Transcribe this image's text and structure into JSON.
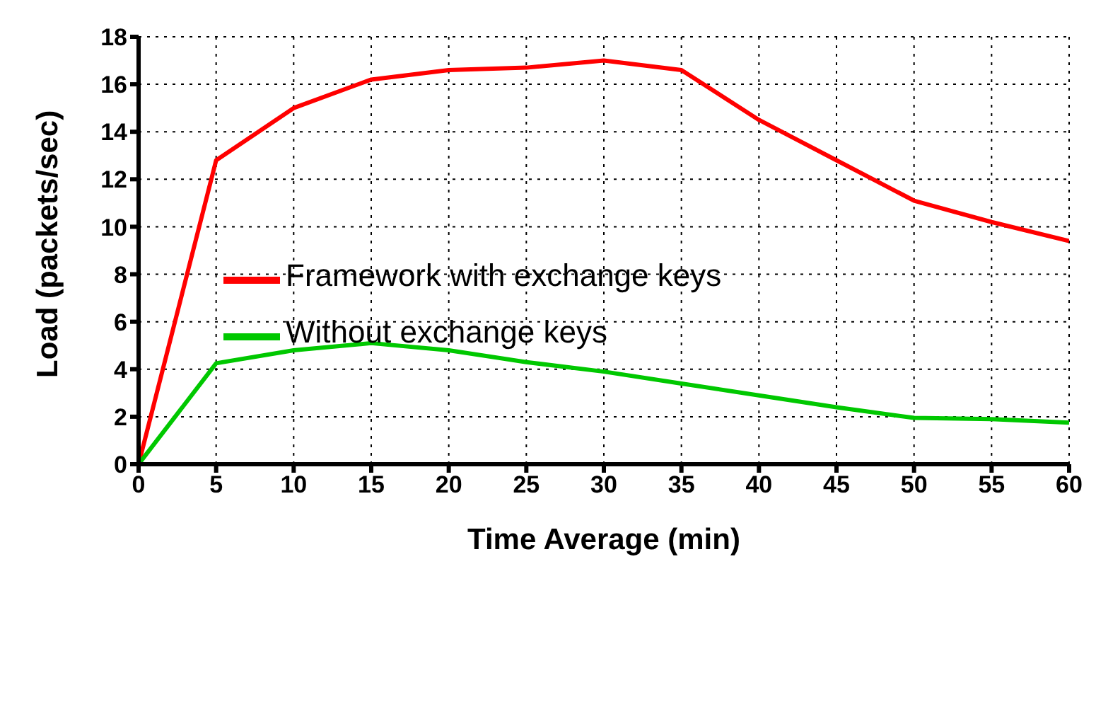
{
  "chart_data": {
    "type": "line",
    "xlabel": "Time Average (min)",
    "ylabel": "Load (packets/sec)",
    "x": [
      0,
      5,
      10,
      15,
      20,
      25,
      30,
      35,
      40,
      45,
      50,
      55,
      60
    ],
    "series": [
      {
        "name": "Framework with exchange keys",
        "color": "#ff0000",
        "values": [
          0,
          12.8,
          15,
          16.2,
          16.6,
          16.7,
          17,
          16.6,
          14.5,
          12.8,
          11.1,
          10.2,
          9.4
        ]
      },
      {
        "name": "Without exchange keys",
        "color": "#00c800",
        "values": [
          0,
          4.25,
          4.8,
          5.1,
          4.8,
          4.3,
          3.9,
          3.4,
          2.9,
          2.4,
          1.95,
          1.9,
          1.75
        ]
      }
    ],
    "xlim": [
      0,
      60
    ],
    "xticks": [
      0,
      5,
      10,
      15,
      20,
      25,
      30,
      35,
      40,
      45,
      50,
      55,
      60
    ],
    "ylim": [
      0,
      18
    ],
    "yticks": [
      0,
      2,
      4,
      6,
      8,
      10,
      12,
      14,
      16,
      18
    ],
    "grid": true,
    "legend": "left",
    "marker": "none",
    "line_style": "solid"
  }
}
